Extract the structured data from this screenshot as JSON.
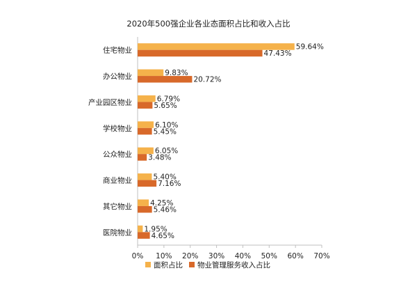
{
  "chart_data": {
    "type": "bar",
    "orientation": "horizontal",
    "title": "2020年500强企业各业态面积占比和收入占比",
    "categories": [
      "住宅物业",
      "办公物业",
      "产业园区物业",
      "学校物业",
      "公众物业",
      "商业物业",
      "其它物业",
      "医院物业"
    ],
    "series": [
      {
        "name": "面积占比",
        "color": "#F5B24B",
        "values": [
          59.64,
          9.83,
          6.79,
          6.1,
          6.05,
          5.4,
          4.25,
          1.95
        ],
        "labels": [
          "59.64%",
          "9.83%",
          "6.79%",
          "6.10%",
          "6.05%",
          "5.40%",
          "4.25%",
          "1.95%"
        ]
      },
      {
        "name": "物业管理服务收入占比",
        "color": "#D8692A",
        "values": [
          47.43,
          20.72,
          5.65,
          5.45,
          3.48,
          7.16,
          5.46,
          4.65
        ],
        "labels": [
          "47.43%",
          "20.72%",
          "5.65%",
          "5.45%",
          "3.48%",
          "7.16%",
          "5.46%",
          "4.65%"
        ]
      }
    ],
    "xlim": [
      0,
      70
    ],
    "ticks": [
      0,
      10,
      20,
      30,
      40,
      50,
      60,
      70
    ],
    "tick_labels": [
      "0%",
      "10%",
      "20%",
      "30%",
      "40%",
      "50%",
      "60%",
      "70%"
    ],
    "xlabel": "",
    "ylabel": "",
    "grid": false,
    "legend_position": "bottom"
  }
}
